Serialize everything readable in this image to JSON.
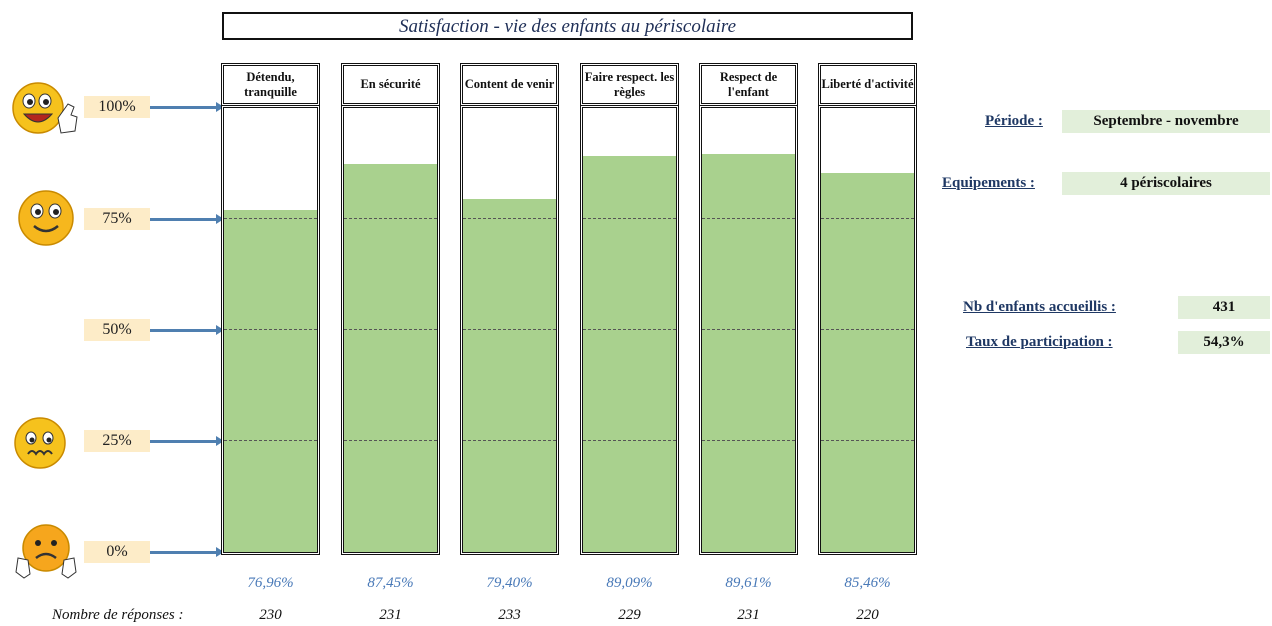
{
  "chart_data": {
    "type": "bar",
    "title": "Satisfaction - vie des enfants au périscolaire",
    "categories": [
      "Détendu, tranquille",
      "En sécurité",
      "Content de venir",
      "Faire respect. les règles",
      "Respect de l'enfant",
      "Liberté d'activité"
    ],
    "values": [
      76.96,
      87.45,
      79.4,
      89.09,
      89.61,
      85.46
    ],
    "value_labels": [
      "76,96%",
      "87,45%",
      "79,40%",
      "89,09%",
      "89,61%",
      "85,46%"
    ],
    "responses": [
      "230",
      "231",
      "233",
      "229",
      "231",
      "220"
    ],
    "responses_label": "Nombre de réponses :",
    "y_ticks": [
      "100%",
      "75%",
      "50%",
      "25%",
      "0%"
    ],
    "ylim": [
      0,
      100
    ],
    "bar_color": "#a9d18e",
    "grid": true
  },
  "info": {
    "periode_label": "Période :",
    "periode_value": "Septembre - novembre",
    "equipements_label": "Equipements :",
    "equipements_value": "4 périscolaires",
    "enfants_label": "Nb d'enfants accueillis :",
    "enfants_value": "431",
    "taux_label": "Taux de participation :",
    "taux_value": "54,3%"
  },
  "icons": [
    "very-happy-thumbs-up-icon",
    "happy-face-icon",
    "worried-face-icon",
    "sad-thumbs-down-icon"
  ]
}
